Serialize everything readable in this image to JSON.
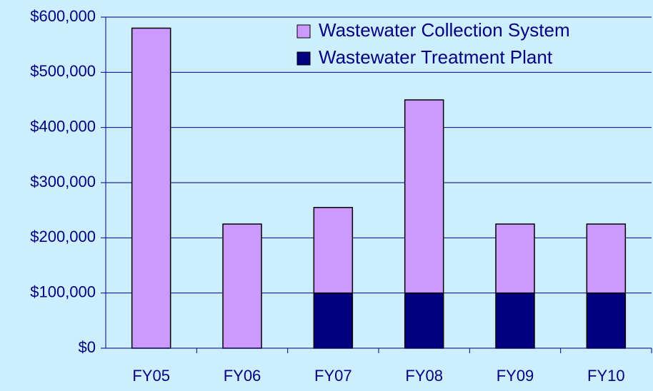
{
  "chart_data": {
    "type": "stacked_bar",
    "categories": [
      "FY05",
      "FY06",
      "FY07",
      "FY08",
      "FY09",
      "FY10"
    ],
    "series": [
      {
        "name": "Wastewater Collection System",
        "color": "#cc99ff",
        "values": [
          580000,
          225000,
          155000,
          350000,
          125000,
          125000
        ]
      },
      {
        "name": "Wastewater Treatment Plant",
        "color": "#000080",
        "values": [
          0,
          0,
          100000,
          100000,
          100000,
          100000
        ]
      }
    ],
    "ylim": [
      0,
      600000
    ],
    "yticks": [
      {
        "value": 0,
        "label": "$0"
      },
      {
        "value": 100000,
        "label": "$100,000"
      },
      {
        "value": 200000,
        "label": "$200,000"
      },
      {
        "value": 300000,
        "label": "$300,000"
      },
      {
        "value": 400000,
        "label": "$400,000"
      },
      {
        "value": 500000,
        "label": "$500,000"
      },
      {
        "value": 600000,
        "label": "$600,000"
      }
    ],
    "grid": true,
    "legend": "top-right"
  }
}
